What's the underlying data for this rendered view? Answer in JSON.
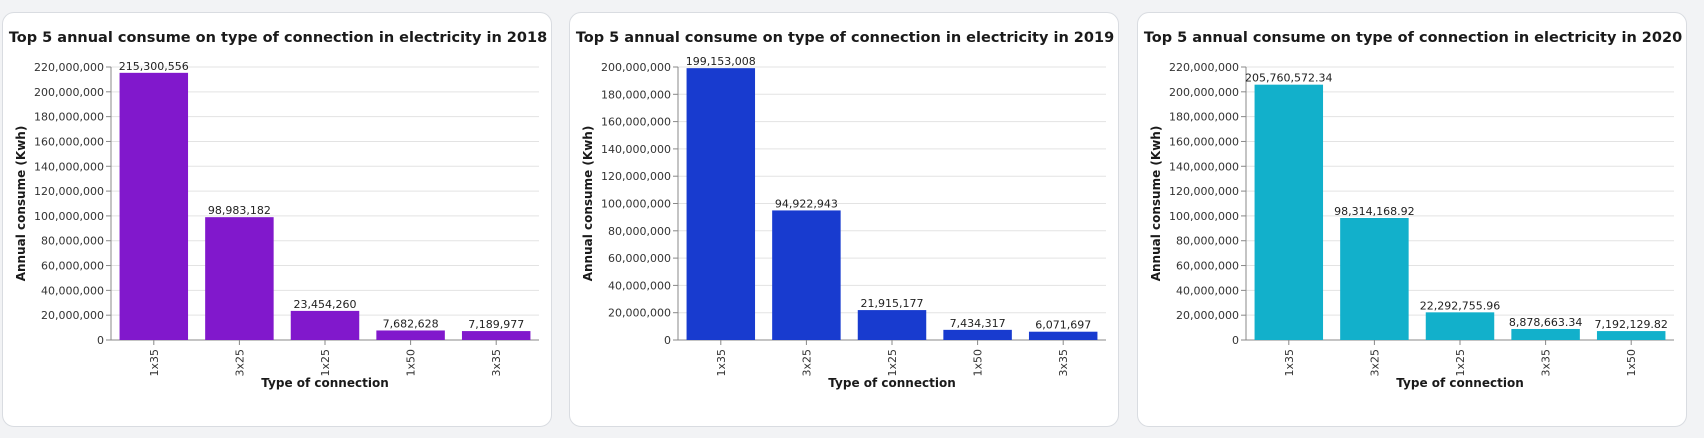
{
  "chart_data": [
    {
      "type": "bar",
      "title": "Top 5 annual consume on type of connection in electricity in 2018",
      "xlabel": "Type of connection",
      "ylabel": "Annual consume (Kwh)",
      "categories": [
        "1x35",
        "3x25",
        "1x25",
        "1x50",
        "3x35"
      ],
      "values": [
        215300556,
        98983182,
        23454260,
        7682628,
        7189977
      ],
      "value_labels": [
        "215,300,556",
        "98,983,182",
        "23,454,260",
        "7,682,628",
        "7,189,977"
      ],
      "ylim": [
        0,
        220000000
      ],
      "yticks": [
        0,
        20000000,
        40000000,
        60000000,
        80000000,
        100000000,
        120000000,
        140000000,
        160000000,
        180000000,
        200000000,
        220000000
      ],
      "ytick_labels": [
        "0",
        "20,000,000",
        "40,000,000",
        "60,000,000",
        "80,000,000",
        "100,000,000",
        "120,000,000",
        "140,000,000",
        "160,000,000",
        "180,000,000",
        "200,000,000",
        "220,000,000"
      ],
      "color": "#8118cc",
      "grid": true
    },
    {
      "type": "bar",
      "title": "Top 5 annual consume on type of connection in electricity in 2019",
      "xlabel": "Type of connection",
      "ylabel": "Annual consume (Kwh)",
      "categories": [
        "1x35",
        "3x25",
        "1x25",
        "1x50",
        "3x35"
      ],
      "values": [
        199153008,
        94922943,
        21915177,
        7434317,
        6071697
      ],
      "value_labels": [
        "199,153,008",
        "94,922,943",
        "21,915,177",
        "7,434,317",
        "6,071,697"
      ],
      "ylim": [
        0,
        200000000
      ],
      "yticks": [
        0,
        20000000,
        40000000,
        60000000,
        80000000,
        100000000,
        120000000,
        140000000,
        160000000,
        180000000,
        200000000
      ],
      "ytick_labels": [
        "0",
        "20,000,000",
        "40,000,000",
        "60,000,000",
        "80,000,000",
        "100,000,000",
        "120,000,000",
        "140,000,000",
        "160,000,000",
        "180,000,000",
        "200,000,000"
      ],
      "color": "#183bcf",
      "grid": true
    },
    {
      "type": "bar",
      "title": "Top 5 annual consume on type of connection in electricity in 2020",
      "xlabel": "Type of connection",
      "ylabel": "Annual consume (Kwh)",
      "categories": [
        "1x35",
        "3x25",
        "1x25",
        "3x35",
        "1x50"
      ],
      "values": [
        205760572.34,
        98314168.92,
        22292755.96,
        8878663.34,
        7192129.82
      ],
      "value_labels": [
        "205,760,572.34",
        "98,314,168.92",
        "22,292,755.96",
        "8,878,663.34",
        "7,192,129.82"
      ],
      "ylim": [
        0,
        220000000
      ],
      "yticks": [
        0,
        20000000,
        40000000,
        60000000,
        80000000,
        100000000,
        120000000,
        140000000,
        160000000,
        180000000,
        200000000,
        220000000
      ],
      "ytick_labels": [
        "0",
        "20,000,000",
        "40,000,000",
        "60,000,000",
        "80,000,000",
        "100,000,000",
        "120,000,000",
        "140,000,000",
        "160,000,000",
        "180,000,000",
        "200,000,000",
        "220,000,000"
      ],
      "color": "#12b0cb",
      "grid": true
    }
  ]
}
